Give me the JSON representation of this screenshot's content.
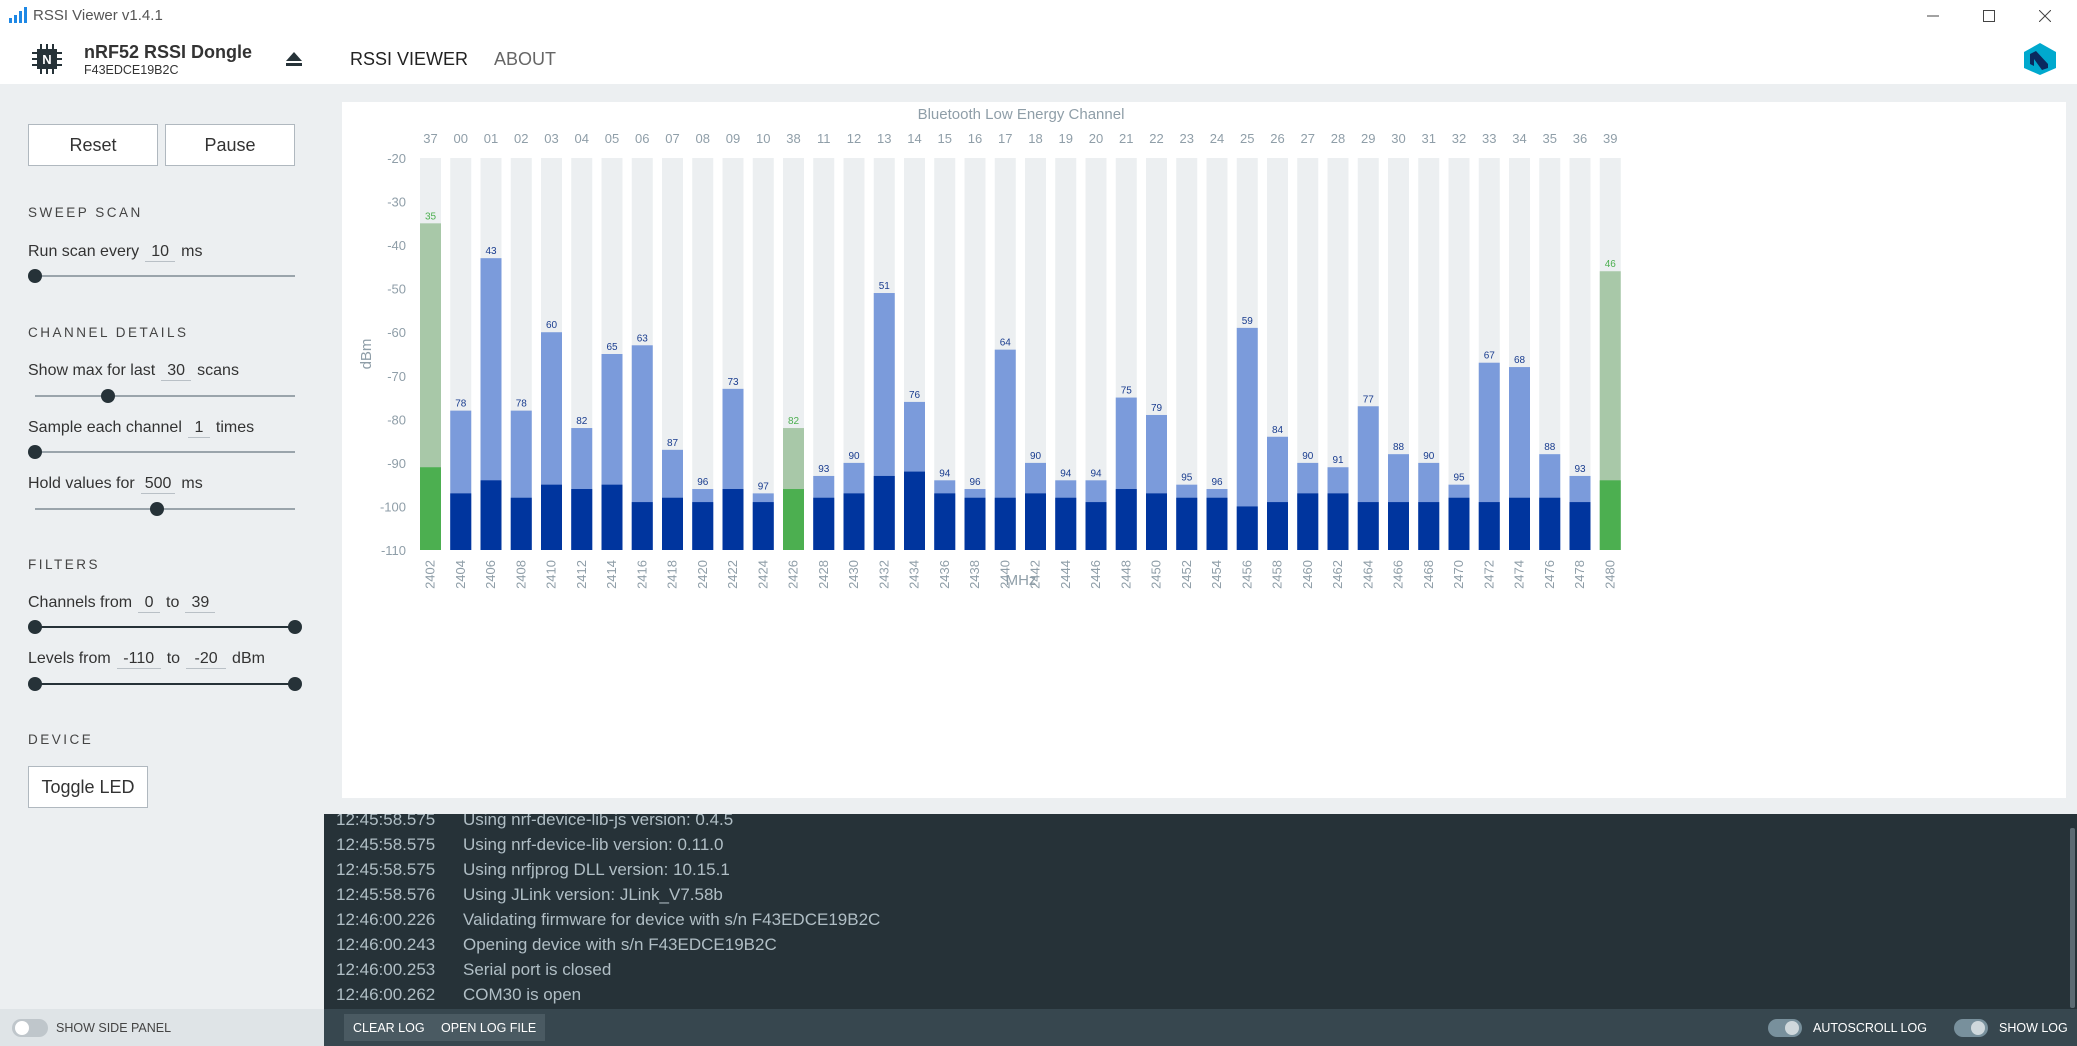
{
  "window": {
    "title": "RSSI Viewer v1.4.1"
  },
  "header": {
    "device_name": "nRF52 RSSI Dongle",
    "device_serial": "F43EDCE19B2C",
    "tabs": [
      {
        "label": "RSSI VIEWER",
        "active": true
      },
      {
        "label": "ABOUT",
        "active": false
      }
    ]
  },
  "sidebar": {
    "reset_label": "Reset",
    "pause_label": "Pause",
    "sweep_title": "SWEEP SCAN",
    "run_scan": {
      "prefix": "Run scan every",
      "value": "10",
      "unit": "ms",
      "slider_fraction": 0.0
    },
    "channel_title": "CHANNEL DETAILS",
    "show_max": {
      "prefix": "Show max for last",
      "value": "30",
      "unit": "scans",
      "slider_fraction": 0.28
    },
    "sample": {
      "prefix": "Sample each channel",
      "value": "1",
      "unit": "times",
      "slider_fraction": 0.0
    },
    "hold": {
      "prefix": "Hold values for",
      "value": "500",
      "unit": "ms",
      "slider_fraction": 0.47
    },
    "filters_title": "FILTERS",
    "channels": {
      "prefix": "Channels from",
      "from": "0",
      "to_label": "to",
      "to": "39"
    },
    "levels": {
      "prefix": "Levels from",
      "from": "-110",
      "to_label": "to",
      "to": "-20",
      "unit": "dBm"
    },
    "device_title": "DEVICE",
    "toggle_led_label": "Toggle LED",
    "show_side_panel_label": "SHOW SIDE PANEL"
  },
  "colors": {
    "ble_max": "#7b9bdb",
    "ble_cur": "#00359e",
    "adv_max": "#a8c8a8",
    "adv_cur": "#4caf50",
    "bg_bar": "#eceff1",
    "label": "#8f9ea8"
  },
  "chart_data": {
    "type": "bar",
    "title": "Bluetooth Low Energy Channel",
    "xlabel": "MHz",
    "ylabel": "dBm",
    "ylim": [
      -110,
      -20
    ],
    "yticks": [
      -20,
      -30,
      -40,
      -50,
      -60,
      -70,
      -80,
      -90,
      -100,
      -110
    ],
    "categories": [
      "37",
      "00",
      "01",
      "02",
      "03",
      "04",
      "05",
      "06",
      "07",
      "08",
      "09",
      "10",
      "38",
      "11",
      "12",
      "13",
      "14",
      "15",
      "16",
      "17",
      "18",
      "19",
      "20",
      "21",
      "22",
      "23",
      "24",
      "25",
      "26",
      "27",
      "28",
      "29",
      "30",
      "31",
      "32",
      "33",
      "34",
      "35",
      "36",
      "39"
    ],
    "frequencies": [
      "2402",
      "2404",
      "2406",
      "2408",
      "2410",
      "2412",
      "2414",
      "2416",
      "2418",
      "2420",
      "2422",
      "2424",
      "2426",
      "2428",
      "2430",
      "2432",
      "2434",
      "2436",
      "2438",
      "2440",
      "2442",
      "2444",
      "2446",
      "2448",
      "2450",
      "2452",
      "2454",
      "2456",
      "2458",
      "2460",
      "2462",
      "2464",
      "2466",
      "2468",
      "2470",
      "2472",
      "2474",
      "2476",
      "2478",
      "2480"
    ],
    "advertising": [
      true,
      false,
      false,
      false,
      false,
      false,
      false,
      false,
      false,
      false,
      false,
      false,
      true,
      false,
      false,
      false,
      false,
      false,
      false,
      false,
      false,
      false,
      false,
      false,
      false,
      false,
      false,
      false,
      false,
      false,
      false,
      false,
      false,
      false,
      false,
      false,
      false,
      false,
      false,
      true
    ],
    "series": [
      {
        "name": "max",
        "values": [
          -35,
          -78,
          -43,
          -78,
          -60,
          -82,
          -65,
          -63,
          -87,
          -96,
          -73,
          -97,
          -82,
          -93,
          -90,
          -51,
          -76,
          -94,
          -96,
          -64,
          -90,
          -94,
          -94,
          -75,
          -79,
          -95,
          -96,
          -59,
          -84,
          -90,
          -91,
          -77,
          -88,
          -90,
          -95,
          -67,
          -68,
          -88,
          -93,
          -46
        ]
      },
      {
        "name": "current",
        "values": [
          -91,
          -97,
          -94,
          -98,
          -95,
          -96,
          -95,
          -99,
          -98,
          -99,
          -96,
          -99,
          -96,
          -98,
          -97,
          -93,
          -92,
          -97,
          -98,
          -98,
          -97,
          -98,
          -99,
          -96,
          -97,
          -98,
          -98,
          -100,
          -99,
          -97,
          -97,
          -99,
          -99,
          -99,
          -98,
          -99,
          -98,
          -98,
          -99,
          -94
        ]
      }
    ]
  },
  "log": {
    "lines": [
      {
        "time": "12:45:58.575",
        "msg": "Using nrf-device-lib-js version: 0.4.5"
      },
      {
        "time": "12:45:58.575",
        "msg": "Using nrf-device-lib version: 0.11.0"
      },
      {
        "time": "12:45:58.575",
        "msg": "Using nrfjprog DLL version: 10.15.1"
      },
      {
        "time": "12:45:58.576",
        "msg": "Using JLink version: JLink_V7.58b"
      },
      {
        "time": "12:46:00.226",
        "msg": "Validating firmware for device with s/n F43EDCE19B2C"
      },
      {
        "time": "12:46:00.243",
        "msg": "Opening device with s/n F43EDCE19B2C"
      },
      {
        "time": "12:46:00.253",
        "msg": "Serial port is closed"
      },
      {
        "time": "12:46:00.262",
        "msg": "COM30 is open"
      }
    ],
    "clear_label": "CLEAR LOG",
    "open_label": "OPEN LOG FILE",
    "autoscroll_label": "AUTOSCROLL LOG",
    "show_log_label": "SHOW LOG"
  }
}
